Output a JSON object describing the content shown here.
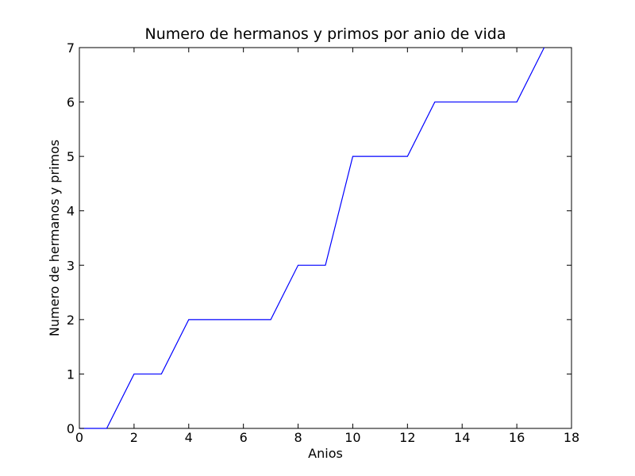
{
  "chart_data": {
    "type": "line",
    "title": "Numero de hermanos y primos por anio de vida",
    "xlabel": "Anios",
    "ylabel": "Numero de hermanos y primos",
    "xlim": [
      0,
      18
    ],
    "ylim": [
      0,
      7
    ],
    "xticks": [
      0,
      2,
      4,
      6,
      8,
      10,
      12,
      14,
      16,
      18
    ],
    "yticks": [
      0,
      1,
      2,
      3,
      4,
      5,
      6,
      7
    ],
    "grid": false,
    "series": [
      {
        "color": "#0000ff",
        "x": [
          0,
          1,
          2,
          3,
          4,
          5,
          6,
          7,
          8,
          9,
          10,
          11,
          12,
          13,
          14,
          15,
          16,
          17
        ],
        "y": [
          0,
          0,
          1,
          1,
          2,
          2,
          2,
          2,
          3,
          3,
          5,
          5,
          5,
          6,
          6,
          6,
          6,
          7
        ]
      }
    ]
  }
}
